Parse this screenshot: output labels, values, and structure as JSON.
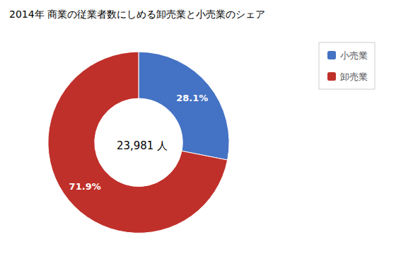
{
  "chart_data": {
    "type": "pie",
    "title": "2014年 商業の従業者数にしめる卸売業と小売業のシェア",
    "categories": [
      "小売業",
      "卸売業"
    ],
    "values": [
      28.1,
      71.9
    ],
    "value_labels": [
      "28.1%",
      "71.9%"
    ],
    "colors": [
      "#4472C4",
      "#C0302A"
    ],
    "data_labels": true,
    "legend": "upper right",
    "annotation": "23,981 人"
  }
}
